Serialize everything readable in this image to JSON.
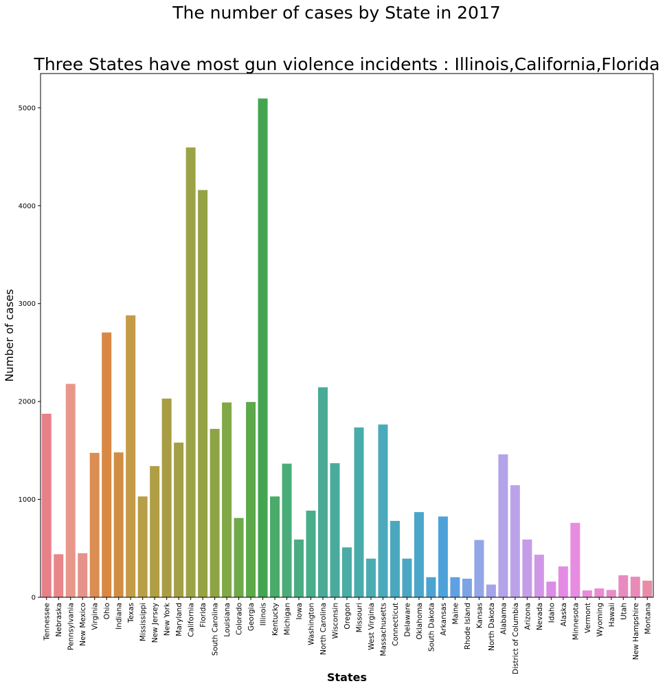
{
  "suptitle": "The number of cases by State in 2017",
  "chart_data": {
    "type": "bar",
    "title": "Three States have most gun violence incidents : Illinois,California,Florida",
    "xlabel": "States",
    "ylabel": "Number of cases",
    "ylim": [
      0,
      5350
    ],
    "yticks": [
      0,
      1000,
      2000,
      3000,
      4000,
      5000
    ],
    "grid": false,
    "categories": [
      "Tennessee",
      "Nebraska",
      "Pennsylvania",
      "New Mexico",
      "Virginia",
      "Ohio",
      "Indiana",
      "Texas",
      "Mississippi",
      "New Jersey",
      "New York",
      "Maryland",
      "California",
      "Florida",
      "South Carolina",
      "Louisiana",
      "Colorado",
      "Georgia",
      "Illinois",
      "Kentucky",
      "Michigan",
      "Iowa",
      "Washington",
      "North Carolina",
      "Wisconsin",
      "Oregon",
      "Missouri",
      "West Virginia",
      "Massachusetts",
      "Connecticut",
      "Delaware",
      "Oklahoma",
      "South Dakota",
      "Arkansas",
      "Maine",
      "Rhode Island",
      "Kansas",
      "North Dakota",
      "Alabama",
      "District of Columbia",
      "Arizona",
      "Nevada",
      "Idaho",
      "Alaska",
      "Minnesota",
      "Vermont",
      "Wyoming",
      "Hawaii",
      "Utah",
      "New Hampshire",
      "Montana"
    ],
    "values": [
      1875,
      440,
      2180,
      450,
      1475,
      2705,
      1480,
      2880,
      1030,
      1340,
      2030,
      1580,
      4595,
      4160,
      1720,
      1990,
      810,
      1995,
      5095,
      1030,
      1365,
      590,
      885,
      2145,
      1370,
      510,
      1735,
      395,
      1765,
      780,
      395,
      870,
      205,
      825,
      205,
      190,
      585,
      130,
      1460,
      1145,
      590,
      435,
      160,
      315,
      760,
      70,
      90,
      75,
      225,
      210,
      170
    ],
    "colors": [
      "#e8808a",
      "#e8868a",
      "#e7988a",
      "#e6928a",
      "#db8d52",
      "#d98843",
      "#d08e45",
      "#c49b46",
      "#b79e47",
      "#b09e45",
      "#a99d44",
      "#a39f45",
      "#9ca346",
      "#95a345",
      "#8ea444",
      "#80a846",
      "#6fa94a",
      "#5ca94a",
      "#43a550",
      "#4aab6a",
      "#4aac78",
      "#4aac83",
      "#49ad8c",
      "#49ab95",
      "#49ab9e",
      "#4aaca5",
      "#4aabab",
      "#4aacb3",
      "#4aaabb",
      "#4aa8be",
      "#4ba7c4",
      "#4ba6ca",
      "#4ba4d0",
      "#4da2d9",
      "#5fa0e2",
      "#7ca4e4",
      "#93a6e6",
      "#a3a3e7",
      "#b3a3e8",
      "#bca3e9",
      "#c59ce8",
      "#d097e7",
      "#da8de5",
      "#e48ae4",
      "#e78ce0",
      "#e88bd8",
      "#e88ccf",
      "#e88cc6",
      "#e88ac0",
      "#e88bb8",
      "#e88ca8"
    ]
  }
}
